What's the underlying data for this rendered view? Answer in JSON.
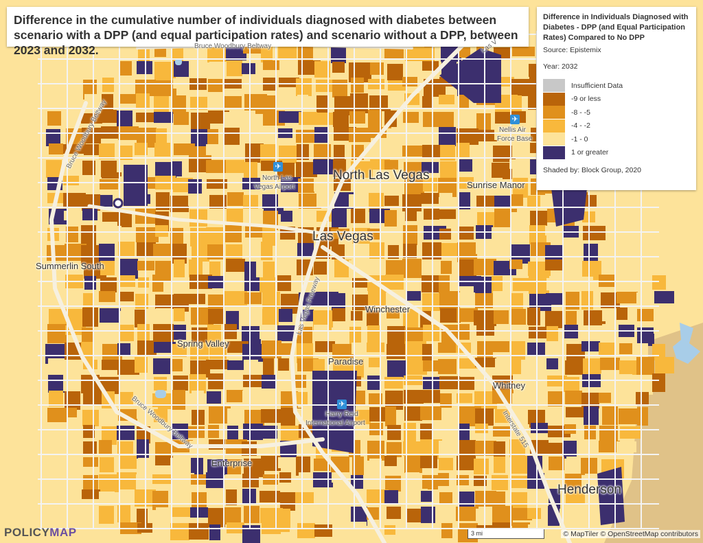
{
  "title": "Difference in the cumulative number of individuals diagnosed with diabetes between scenario with a DPP (and equal participation rates) and scenario without a DPP, between 2023 and 2032.",
  "legend": {
    "title": "Difference in Individuals Diagnosed with Diabetes - DPP (and Equal Participation Rates) Compared to No DPP",
    "source": "Source: Epistemix",
    "year": "Year: 2032",
    "items": [
      {
        "label": "Insufficient Data",
        "color": "#c8c8c8"
      },
      {
        "label": "-9 or less",
        "color": "#b9640a"
      },
      {
        "label": "-8 - -5",
        "color": "#e0901c"
      },
      {
        "label": "-4 - -2",
        "color": "#f8b83c"
      },
      {
        "label": "-1 - 0",
        "color": "#fde39a"
      },
      {
        "label": "1 or greater",
        "color": "#3c2f6e"
      }
    ],
    "shaded_by": "Shaded by: Block Group, 2020"
  },
  "places": {
    "north_las_vegas": "North Las Vegas",
    "las_vegas": "Las Vegas",
    "henderson": "Henderson",
    "summerlin_south": "Summerlin South",
    "spring_valley": "Spring Valley",
    "paradise": "Paradise",
    "winchester": "Winchester",
    "enterprise": "Enterprise",
    "whitney": "Whitney",
    "sunrise_manor": "Sunrise Manor",
    "nellis_line1": "Nellis Air",
    "nellis_line2": "Force Base",
    "north_lv_airport_line1": "North Las",
    "north_lv_airport_line2": "Vegas Airport",
    "harry_reid_line1": "Harry Reid",
    "harry_reid_line2": "International Airport"
  },
  "roads": {
    "bruce_woodbury_nw": "Bruce Woodbury Beltway",
    "bruce_woodbury_sw": "Bruce Woodbury Beltway",
    "las_vegas_freeway": "Las Vegas Freeway",
    "interstate_515": "Interstate 515",
    "las_vegas_top": "Las V",
    "beltway_top": "Bruce Woodbury Beltway"
  },
  "branding": {
    "logo_part1": "POLICY",
    "logo_part2": "MAP"
  },
  "scale_label": "3 mi",
  "attribution": "© MapTiler © OpenStreetMap contributors",
  "colors": {
    "base": "#fde39a",
    "road": "#f3f3f3",
    "water": "#a8cde8",
    "lavender": "#8a7fb0",
    "terrain": "#c9a87a"
  }
}
